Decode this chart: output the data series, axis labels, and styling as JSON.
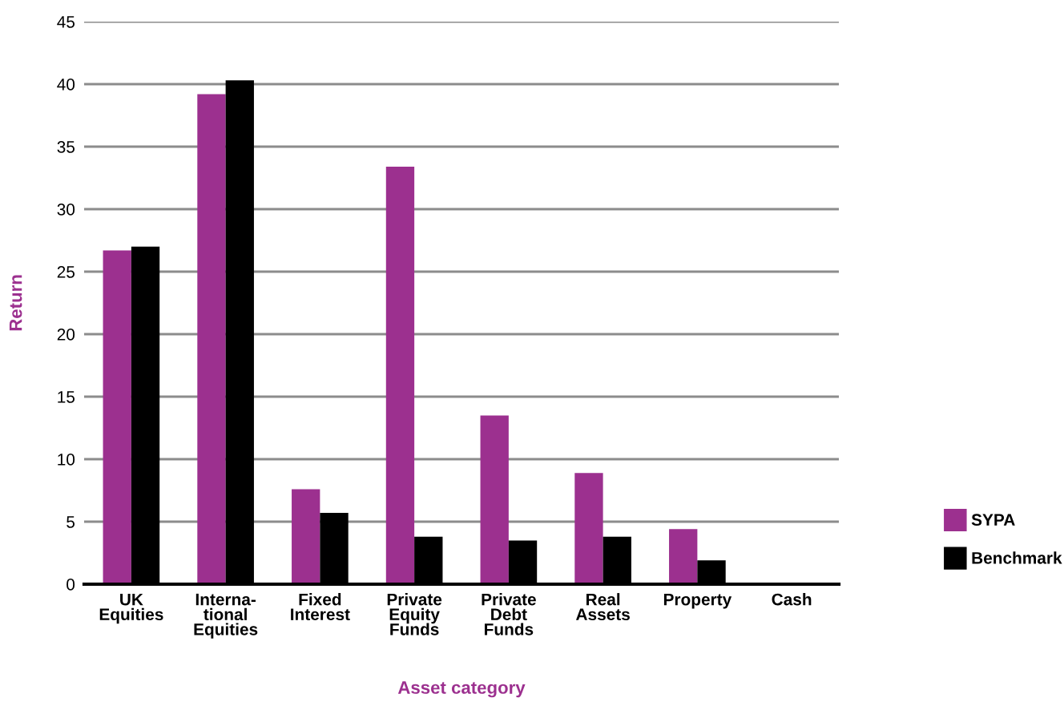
{
  "chart_data": {
    "type": "bar",
    "xlabel": "Asset category",
    "ylabel": "Return",
    "categories": [
      "UK\nEquities",
      "Interna-\ntional\nEquities",
      "Fixed\nInterest",
      "Private\nEquity\nFunds",
      "Private\nDebt\nFunds",
      "Real\nAssets",
      "Property",
      "Cash"
    ],
    "series": [
      {
        "name": "SYPA",
        "color": "#9c308f",
        "values": [
          26.7,
          39.2,
          7.6,
          33.4,
          13.5,
          8.9,
          4.4,
          0
        ]
      },
      {
        "name": "Benchmark",
        "color": "#000000",
        "values": [
          27.0,
          40.3,
          5.7,
          3.8,
          3.5,
          3.8,
          1.9,
          0
        ]
      }
    ],
    "ylim": [
      0,
      45
    ],
    "yticks": [
      0,
      5,
      10,
      15,
      20,
      25,
      30,
      35,
      40,
      45
    ],
    "grid": "y",
    "legend": "right"
  }
}
